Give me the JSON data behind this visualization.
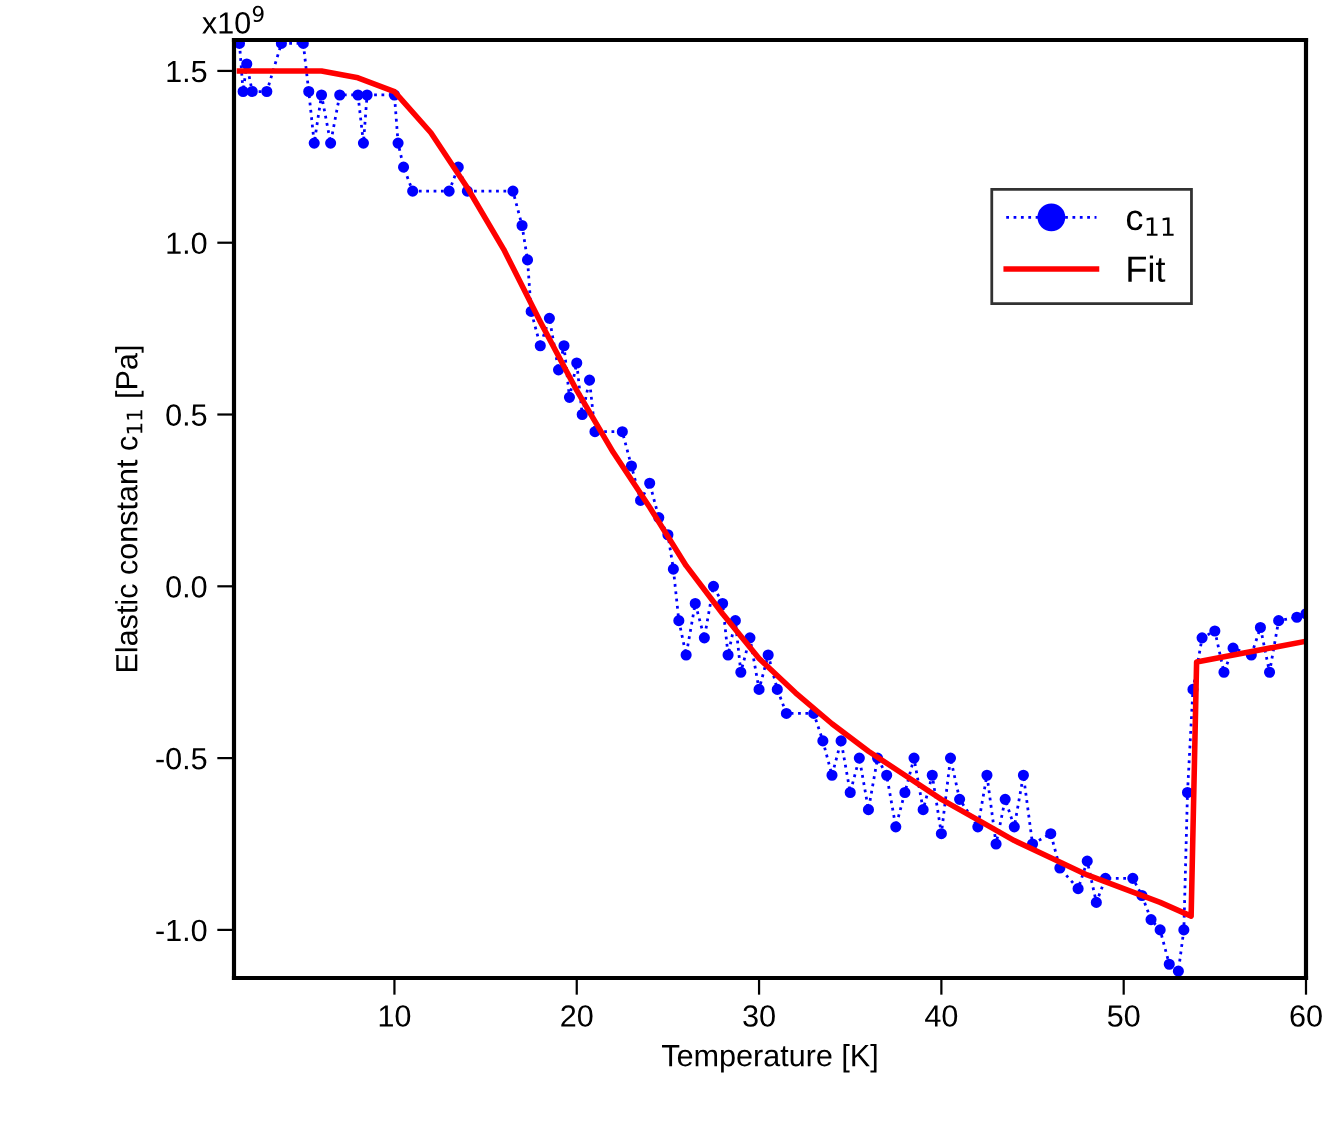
{
  "chart_data": {
    "type": "line",
    "xlabel": "Temperature [K]",
    "ylabel": "Elastic constant c$_{11}$ [Pa]",
    "annotations": [
      "x10$^{9}$"
    ],
    "xlim": [
      1.2,
      60
    ],
    "ylim": [
      -1.14,
      1.59
    ],
    "xticks": [
      10,
      20,
      30,
      40,
      50,
      60
    ],
    "yticks": [
      {
        "value": 1.5,
        "label": "1.5"
      },
      {
        "value": 1.0,
        "label": "1.0"
      },
      {
        "value": 0.5,
        "label": "0.5"
      },
      {
        "value": 0.0,
        "label": "0.0"
      },
      {
        "value": -0.5,
        "label": "-0.5"
      },
      {
        "value": -1.0,
        "label": "-1.0"
      }
    ],
    "grid": false,
    "legend": "top right",
    "series": [
      {
        "name": "c$_{11}$",
        "color": "#0000ff",
        "marker": "circle",
        "line_style": "dotted",
        "x": [
          1.5,
          1.7,
          1.9,
          2.2,
          3,
          3.8,
          5,
          5.3,
          5.6,
          6,
          6.5,
          7,
          8,
          8.3,
          8.5,
          10,
          10.2,
          10.5,
          11,
          13,
          13.5,
          14,
          16.5,
          17,
          17.3,
          17.5,
          18,
          18.5,
          19,
          19.3,
          19.6,
          20,
          20.3,
          20.7,
          21,
          22.5,
          23,
          23.5,
          24,
          24.5,
          25,
          25.3,
          25.6,
          26,
          26.5,
          27,
          27.5,
          28,
          28.3,
          28.7,
          29,
          29.5,
          30,
          30.5,
          31,
          31.5,
          33,
          33.5,
          34,
          34.5,
          35,
          35.5,
          36,
          36.5,
          37,
          37.5,
          38,
          38.5,
          39,
          39.5,
          40,
          40.5,
          41,
          42,
          42.5,
          43,
          43.5,
          44,
          44.5,
          45,
          46,
          46.5,
          47.5,
          48,
          48.5,
          49,
          50.5,
          51,
          51.5,
          52,
          52.5,
          53,
          53.3,
          53.5,
          53.8,
          54.3,
          55,
          55.5,
          56,
          57,
          57.5,
          58,
          58.5,
          59.5,
          60
        ],
        "values": [
          1.58,
          1.44,
          1.52,
          1.44,
          1.44,
          1.58,
          1.58,
          1.44,
          1.29,
          1.43,
          1.29,
          1.43,
          1.43,
          1.29,
          1.43,
          1.43,
          1.29,
          1.22,
          1.15,
          1.15,
          1.22,
          1.15,
          1.15,
          1.05,
          0.95,
          0.8,
          0.7,
          0.78,
          0.63,
          0.7,
          0.55,
          0.65,
          0.5,
          0.6,
          0.45,
          0.45,
          0.35,
          0.25,
          0.3,
          0.2,
          0.15,
          0.05,
          -0.1,
          -0.2,
          -0.05,
          -0.15,
          0.0,
          -0.05,
          -0.2,
          -0.1,
          -0.25,
          -0.15,
          -0.3,
          -0.2,
          -0.3,
          -0.37,
          -0.37,
          -0.45,
          -0.55,
          -0.45,
          -0.6,
          -0.5,
          -0.65,
          -0.5,
          -0.55,
          -0.7,
          -0.6,
          -0.5,
          -0.65,
          -0.55,
          -0.72,
          -0.5,
          -0.62,
          -0.7,
          -0.55,
          -0.75,
          -0.62,
          -0.7,
          -0.55,
          -0.75,
          -0.72,
          -0.82,
          -0.88,
          -0.8,
          -0.92,
          -0.85,
          -0.85,
          -0.9,
          -0.97,
          -1.0,
          -1.1,
          -1.12,
          -1.0,
          -0.6,
          -0.3,
          -0.15,
          -0.13,
          -0.25,
          -0.18,
          -0.2,
          -0.12,
          -0.25,
          -0.1,
          -0.09,
          -0.08
        ]
      },
      {
        "name": "Fit",
        "color": "#ff0000",
        "marker": "none",
        "line_style": "solid",
        "x": [
          1.5,
          6,
          8,
          10,
          12,
          14,
          16,
          18,
          20,
          22,
          24,
          26,
          28,
          30,
          32,
          34,
          36,
          38,
          40,
          42,
          44,
          46,
          48,
          50,
          52,
          53.7,
          54,
          60
        ],
        "values": [
          1.5,
          1.5,
          1.48,
          1.44,
          1.32,
          1.16,
          0.98,
          0.77,
          0.57,
          0.39,
          0.23,
          0.06,
          -0.08,
          -0.21,
          -0.31,
          -0.4,
          -0.48,
          -0.55,
          -0.62,
          -0.68,
          -0.74,
          -0.79,
          -0.84,
          -0.88,
          -0.92,
          -0.96,
          -0.22,
          -0.16
        ]
      }
    ]
  }
}
